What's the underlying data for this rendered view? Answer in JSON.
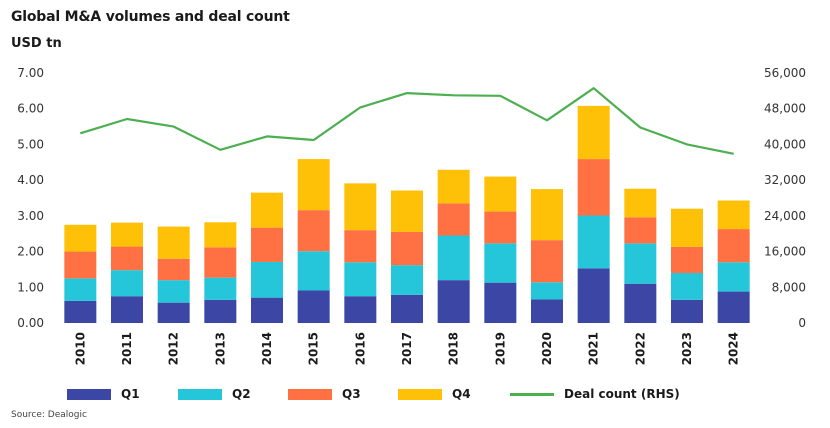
{
  "title": "Global M&A volumes and deal count",
  "unit_label": "USD tn",
  "source": "Source: Dealogic",
  "colors": {
    "q1": "#3b46a5",
    "q2": "#26c6da",
    "q3": "#ff7043",
    "q4": "#ffc107",
    "deal_count": "#4caf50"
  },
  "legend": {
    "q1": "Q1",
    "q2": "Q2",
    "q3": "Q3",
    "q4": "Q4",
    "deal_count": "Deal count (RHS)"
  },
  "chart_data": {
    "type": "bar",
    "stacked": true,
    "categories": [
      "2010",
      "2011",
      "2012",
      "2013",
      "2014",
      "2015",
      "2016",
      "2017",
      "2018",
      "2019",
      "2020",
      "2021",
      "2022",
      "2023",
      "2024"
    ],
    "series": [
      {
        "name": "Q1",
        "values": [
          0.62,
          0.75,
          0.57,
          0.65,
          0.71,
          0.91,
          0.75,
          0.79,
          1.2,
          1.13,
          0.66,
          1.53,
          1.1,
          0.65,
          0.88
        ]
      },
      {
        "name": "Q2",
        "values": [
          0.63,
          0.73,
          0.63,
          0.62,
          1.0,
          1.1,
          0.95,
          0.83,
          1.25,
          1.1,
          0.48,
          1.48,
          1.13,
          0.75,
          0.82
        ]
      },
      {
        "name": "Q3",
        "values": [
          0.75,
          0.66,
          0.6,
          0.85,
          0.96,
          1.15,
          0.9,
          0.93,
          0.9,
          0.89,
          1.18,
          1.58,
          0.73,
          0.73,
          0.93
        ]
      },
      {
        "name": "Q4",
        "values": [
          0.75,
          0.67,
          0.9,
          0.7,
          0.98,
          1.43,
          1.31,
          1.16,
          0.94,
          0.98,
          1.43,
          1.49,
          0.8,
          1.07,
          0.8
        ]
      }
    ],
    "line_series": {
      "name": "Deal count (RHS)",
      "axis": "right",
      "values": [
        42500,
        45700,
        44000,
        38800,
        41800,
        41000,
        48300,
        51500,
        51000,
        50900,
        45400,
        52600,
        43800,
        40000,
        37900
      ]
    },
    "ylim": [
      0,
      7
    ],
    "yticks": [
      "0.00",
      "1.00",
      "2.00",
      "3.00",
      "4.00",
      "5.00",
      "6.00",
      "7.00"
    ],
    "y2lim": [
      0,
      56000
    ],
    "y2ticks": [
      "0",
      "8,000",
      "16,000",
      "24,000",
      "32,000",
      "40,000",
      "48,000",
      "56,000"
    ],
    "grid": false,
    "legend_position": "bottom"
  }
}
